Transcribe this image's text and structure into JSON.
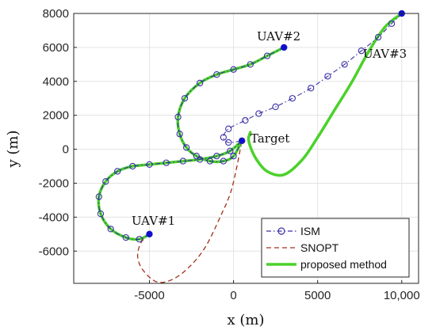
{
  "chart_data": {
    "type": "line",
    "title": "",
    "xlabel": "x (m)",
    "ylabel": "y (m)",
    "xlim": [
      -9500,
      11000
    ],
    "ylim": [
      -7900,
      8000
    ],
    "xticks": [
      -5000,
      0,
      5000,
      10000
    ],
    "xtick_labels": [
      "-5000",
      "0",
      "5000",
      "10,000"
    ],
    "yticks": [
      -6000,
      -4000,
      -2000,
      0,
      2000,
      4000,
      6000,
      8000
    ],
    "ytick_labels": [
      "-6000",
      "-4000",
      "-2000",
      "0",
      "2000",
      "4000",
      "6000",
      "8000"
    ],
    "grid": true,
    "legend_position": "bottom-right",
    "legend": [
      "ISM",
      "SNOPT",
      "proposed method"
    ],
    "colors": {
      "ism": "#3a30a6",
      "snopt": "#a0301c",
      "proposed": "#4bd12a",
      "start": "#1010d0"
    },
    "annotations": [
      {
        "text": "UAV#1",
        "x": -5000,
        "y": -5000
      },
      {
        "text": "UAV#2",
        "x": 3000,
        "y": 6000
      },
      {
        "text": "UAV#3",
        "x": 10000,
        "y": 8000
      },
      {
        "text": "Target",
        "x": 500,
        "y": 500
      }
    ],
    "start_points": [
      {
        "label": "UAV#1",
        "x": -5000,
        "y": -5000
      },
      {
        "label": "UAV#2",
        "x": 3000,
        "y": 6000
      },
      {
        "label": "UAV#3",
        "x": 10000,
        "y": 8000
      }
    ],
    "target": {
      "x": 500,
      "y": 500
    },
    "series": [
      {
        "name": "ISM",
        "style": "dash-dot with circle markers",
        "paths": [
          [
            [
              -5000,
              -5000
            ],
            [
              -5600,
              -5300
            ],
            [
              -6400,
              -5200
            ],
            [
              -7300,
              -4700
            ],
            [
              -7900,
              -3800
            ],
            [
              -8000,
              -2800
            ],
            [
              -7600,
              -1900
            ],
            [
              -6900,
              -1300
            ],
            [
              -6000,
              -1000
            ],
            [
              -5000,
              -900
            ],
            [
              -4000,
              -800
            ],
            [
              -3000,
              -700
            ],
            [
              -2000,
              -600
            ],
            [
              -1000,
              -400
            ],
            [
              -200,
              -100
            ],
            [
              500,
              500
            ]
          ],
          [
            [
              3000,
              6000
            ],
            [
              2000,
              5500
            ],
            [
              1000,
              5000
            ],
            [
              0,
              4700
            ],
            [
              -1000,
              4400
            ],
            [
              -2000,
              3900
            ],
            [
              -2900,
              3000
            ],
            [
              -3300,
              1900
            ],
            [
              -3200,
              900
            ],
            [
              -2800,
              100
            ],
            [
              -2200,
              -400
            ],
            [
              -1400,
              -700
            ],
            [
              -600,
              -700
            ],
            [
              0,
              -400
            ],
            [
              500,
              500
            ]
          ],
          [
            [
              10000,
              8000
            ],
            [
              9400,
              7400
            ],
            [
              8600,
              6600
            ],
            [
              7600,
              5800
            ],
            [
              6600,
              5000
            ],
            [
              5600,
              4300
            ],
            [
              4600,
              3600
            ],
            [
              3500,
              3000
            ],
            [
              2500,
              2500
            ],
            [
              1500,
              2100
            ],
            [
              700,
              1700
            ],
            [
              -300,
              1200
            ],
            [
              -600,
              700
            ],
            [
              -300,
              400
            ],
            [
              500,
              500
            ]
          ]
        ]
      },
      {
        "name": "SNOPT",
        "style": "dashed",
        "paths": [
          [
            [
              -5000,
              -5000
            ],
            [
              -5500,
              -5500
            ],
            [
              -5700,
              -6300
            ],
            [
              -5400,
              -7100
            ],
            [
              -4600,
              -7800
            ],
            [
              -3700,
              -7700
            ],
            [
              -2700,
              -7000
            ],
            [
              -1700,
              -5800
            ],
            [
              -800,
              -4000
            ],
            [
              -100,
              -2300
            ],
            [
              500,
              500
            ]
          ]
        ]
      },
      {
        "name": "proposed method",
        "style": "solid",
        "paths": [
          [
            [
              -5000,
              -5000
            ],
            [
              -5600,
              -5300
            ],
            [
              -6400,
              -5200
            ],
            [
              -7300,
              -4700
            ],
            [
              -7900,
              -3800
            ],
            [
              -8000,
              -2800
            ],
            [
              -7600,
              -1900
            ],
            [
              -6900,
              -1300
            ],
            [
              -6000,
              -1000
            ],
            [
              -5000,
              -900
            ],
            [
              -4000,
              -800
            ],
            [
              -3000,
              -700
            ],
            [
              -2000,
              -600
            ],
            [
              -1000,
              -400
            ],
            [
              -200,
              -100
            ],
            [
              500,
              500
            ]
          ],
          [
            [
              3000,
              6000
            ],
            [
              2000,
              5500
            ],
            [
              1000,
              5000
            ],
            [
              0,
              4700
            ],
            [
              -1000,
              4400
            ],
            [
              -2000,
              3900
            ],
            [
              -2900,
              3000
            ],
            [
              -3300,
              1900
            ],
            [
              -3200,
              900
            ],
            [
              -2800,
              100
            ],
            [
              -2200,
              -400
            ],
            [
              -1400,
              -700
            ],
            [
              -600,
              -700
            ],
            [
              0,
              -400
            ],
            [
              500,
              500
            ]
          ],
          [
            [
              10000,
              8000
            ],
            [
              9000,
              7200
            ],
            [
              8000,
              5700
            ],
            [
              7000,
              3900
            ],
            [
              6000,
              2300
            ],
            [
              5000,
              700
            ],
            [
              4100,
              -600
            ],
            [
              3000,
              -1500
            ],
            [
              2000,
              -1300
            ],
            [
              1300,
              -500
            ],
            [
              900,
              500
            ],
            [
              1000,
              1000
            ]
          ]
        ]
      }
    ]
  }
}
